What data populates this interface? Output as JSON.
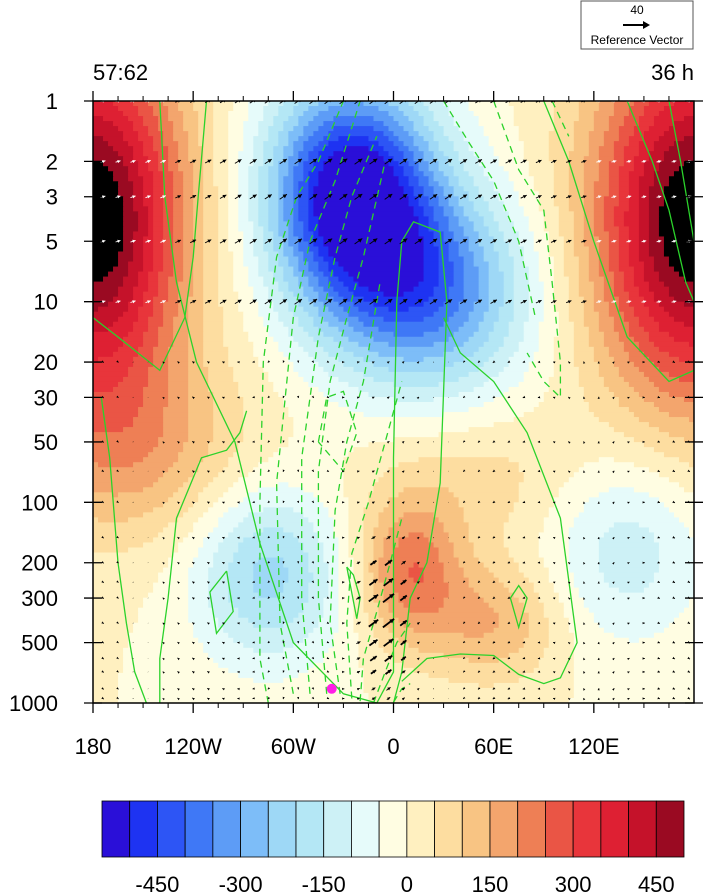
{
  "chart_data": {
    "type": "heatmap",
    "title_left": "57:62",
    "title_right": "36 h",
    "x": {
      "range": [
        -180,
        180
      ],
      "ticks": [
        -180,
        -120,
        -60,
        0,
        60,
        120
      ],
      "tick_labels": [
        "180",
        "120W",
        "60W",
        "0",
        "60E",
        "120E"
      ]
    },
    "y": {
      "scale": "log",
      "reversed": true,
      "range": [
        1,
        1000
      ],
      "ticks": [
        1,
        2,
        3,
        5,
        10,
        20,
        30,
        50,
        100,
        200,
        300,
        500,
        1000
      ],
      "tick_labels": [
        "1",
        "2",
        "3",
        "5",
        "10",
        "20",
        "30",
        "50",
        "100",
        "200",
        "300",
        "500",
        "1000"
      ]
    },
    "colorbar": {
      "levels": [
        -500,
        -450,
        -400,
        -350,
        -300,
        -250,
        -200,
        -150,
        -100,
        -50,
        0,
        50,
        100,
        150,
        200,
        250,
        300,
        350,
        400,
        450,
        500
      ],
      "colors": [
        "#2a0fd8",
        "#1e33f2",
        "#2d55f5",
        "#3f78f6",
        "#5d9cf6",
        "#7dbdf8",
        "#9ed8f6",
        "#b4e7f5",
        "#cdf1f6",
        "#e6fbfa",
        "#fffde2",
        "#fff0c0",
        "#fddda0",
        "#f8c483",
        "#f3a56d",
        "#ee7f55",
        "#ea5545",
        "#e8353b",
        "#de2033",
        "#c5122a",
        "#9a0a22"
      ],
      "labels": [
        -450,
        -300,
        -150,
        0,
        150,
        300,
        450
      ],
      "label_text": [
        "-450",
        "-300",
        "-150",
        "0",
        "150",
        "300",
        "450"
      ]
    },
    "reference_vector": {
      "value": "40",
      "label": "Reference Vector"
    },
    "marker": {
      "lon": -37,
      "pressure": 850,
      "color": "#ff1ee6"
    },
    "contour_color": "#2bd22b",
    "vector_color": "#000000",
    "grid_on": false
  }
}
